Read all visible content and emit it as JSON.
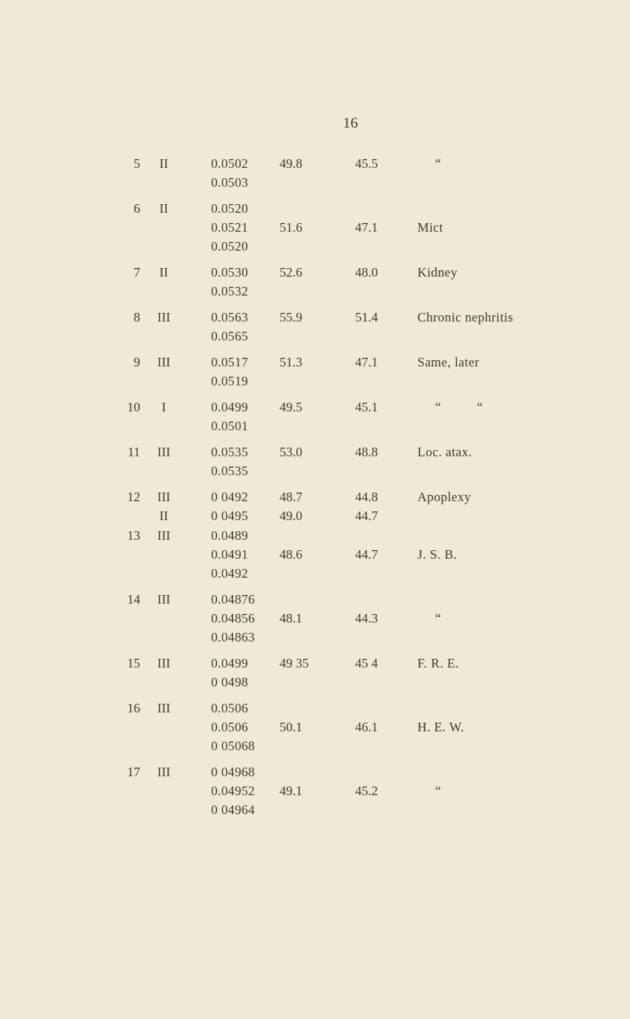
{
  "page_number": "16",
  "rows": [
    {
      "case": "5",
      "lines": [
        {
          "class": "II",
          "decimal": "0.0502",
          "a": "49.8",
          "b": "45.5",
          "remark": "     “"
        },
        {
          "class": "",
          "decimal": "0.0503",
          "a": "",
          "b": "",
          "remark": ""
        }
      ]
    },
    {
      "case": "6",
      "lines": [
        {
          "class": "II",
          "decimal": "0.0520",
          "a": "",
          "b": "",
          "remark": ""
        },
        {
          "class": "",
          "decimal": "0.0521",
          "a": "51.6",
          "b": "47.1",
          "remark": "Mict"
        },
        {
          "class": "",
          "decimal": "0.0520",
          "a": "",
          "b": "",
          "remark": ""
        }
      ]
    },
    {
      "case": "7",
      "lines": [
        {
          "class": "II",
          "decimal": "0.0530",
          "a": "52.6",
          "b": "48.0",
          "remark": "Kidney"
        },
        {
          "class": "",
          "decimal": "0.0532",
          "a": "",
          "b": "",
          "remark": ""
        }
      ]
    },
    {
      "case": "8",
      "lines": [
        {
          "class": "III",
          "decimal": "0.0563",
          "a": "55.9",
          "b": "51.4",
          "remark": "Chronic nephritis"
        },
        {
          "class": "",
          "decimal": "0.0565",
          "a": "",
          "b": "",
          "remark": ""
        }
      ]
    },
    {
      "case": "9",
      "lines": [
        {
          "class": "III",
          "decimal": "0.0517",
          "a": "51.3",
          "b": "47.1",
          "remark": "Same, later"
        },
        {
          "class": "",
          "decimal": "0.0519",
          "a": "",
          "b": "",
          "remark": ""
        }
      ]
    },
    {
      "case": "10",
      "lines": [
        {
          "class": "I",
          "decimal": "0.0499",
          "a": "49.5",
          "b": "45.1",
          "remark": "     “          “"
        },
        {
          "class": "",
          "decimal": "0.0501",
          "a": "",
          "b": "",
          "remark": ""
        }
      ]
    },
    {
      "case": "11",
      "lines": [
        {
          "class": "III",
          "decimal": "0.0535",
          "a": "53.0",
          "b": "48.8",
          "remark": "Loc. atax."
        },
        {
          "class": "",
          "decimal": "0.0535",
          "a": "",
          "b": "",
          "remark": ""
        }
      ]
    },
    {
      "case": "12",
      "lines": [
        {
          "class": "III",
          "decimal": "0 0492",
          "a": "48.7",
          "b": "44.8",
          "remark": "Apoplexy"
        },
        {
          "class": "II",
          "decimal": "0 0495",
          "a": "49.0",
          "b": "44.7",
          "remark": ""
        }
      ]
    },
    {
      "case": "13",
      "tight": true,
      "lines": [
        {
          "class": "III",
          "decimal": "0.0489",
          "a": "",
          "b": "",
          "remark": ""
        },
        {
          "class": "",
          "decimal": "0.0491",
          "a": "48.6",
          "b": "44.7",
          "remark": "J. S. B."
        },
        {
          "class": "",
          "decimal": "0.0492",
          "a": "",
          "b": "",
          "remark": ""
        }
      ]
    },
    {
      "case": "14",
      "lines": [
        {
          "class": "III",
          "decimal": "0.04876",
          "a": "",
          "b": "",
          "remark": ""
        },
        {
          "class": "",
          "decimal": "0.04856",
          "a": "48.1",
          "b": "44.3",
          "remark": "     “"
        },
        {
          "class": "",
          "decimal": "0.04863",
          "a": "",
          "b": "",
          "remark": ""
        }
      ]
    },
    {
      "case": "15",
      "lines": [
        {
          "class": "III",
          "decimal": "0.0499",
          "a": "49 35",
          "b": "45 4",
          "remark": "F. R. E."
        },
        {
          "class": "",
          "decimal": "0 0498",
          "a": "",
          "b": "",
          "remark": ""
        }
      ]
    },
    {
      "case": "16",
      "lines": [
        {
          "class": "III",
          "decimal": "0.0506",
          "a": "",
          "b": "",
          "remark": ""
        },
        {
          "class": "",
          "decimal": "0.0506",
          "a": "50.1",
          "b": "46.1",
          "remark": "H. E. W."
        },
        {
          "class": "",
          "decimal": "0 05068",
          "a": "",
          "b": "",
          "remark": ""
        }
      ]
    },
    {
      "case": "17",
      "lines": [
        {
          "class": "III",
          "decimal": "0 04968",
          "a": "",
          "b": "",
          "remark": ""
        },
        {
          "class": "",
          "decimal": "0.04952",
          "a": "49.1",
          "b": "45.2",
          "remark": "     “"
        },
        {
          "class": "",
          "decimal": "0 04964",
          "a": "",
          "b": "",
          "remark": ""
        }
      ]
    }
  ]
}
